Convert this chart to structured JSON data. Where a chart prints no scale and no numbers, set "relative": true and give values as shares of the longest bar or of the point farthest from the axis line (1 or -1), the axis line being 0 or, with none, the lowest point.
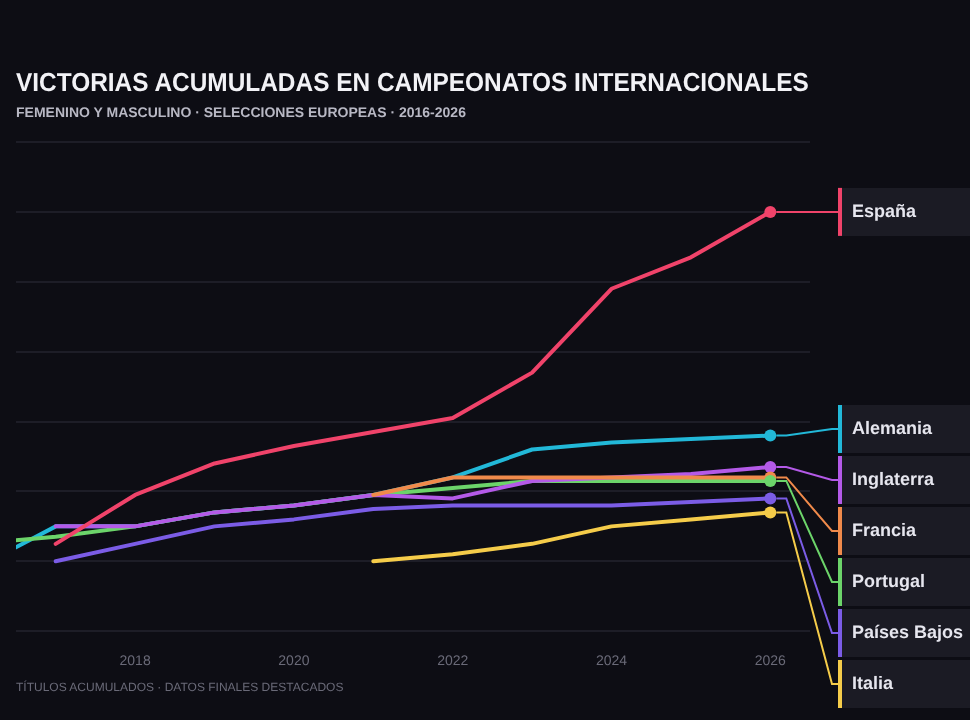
{
  "chart_data": {
    "type": "line",
    "title": "VICTORIAS ACUMULADAS EN CAMPEONATOS INTERNACIONALES",
    "subtitle": "FEMENINO Y MASCULINO · SELECCIONES EUROPEAS · 2016-2026",
    "annotations": [
      "TÍTULOS ACUMULADOS · DATOS FINALES DESTACADOS"
    ],
    "relative": true,
    "xlim": [
      2016.5,
      2026.5
    ],
    "xticks": [
      2018,
      2020,
      2022,
      2024,
      2026
    ],
    "grid": "y",
    "legend": "right",
    "line_style": "solid",
    "series": [
      {
        "name": "Alemania",
        "color": "#22b8d8",
        "x": [
          2016.5,
          2017,
          2018,
          2019,
          2020,
          2021,
          2022,
          2023,
          2024,
          2025,
          2026
        ],
        "values": [
          0.04,
          0.1,
          0.1,
          0.14,
          0.16,
          0.19,
          0.24,
          0.32,
          0.34,
          0.35,
          0.36
        ]
      },
      {
        "name": "Portugal",
        "color": "#6cd46a",
        "x": [
          2016.5,
          2017,
          2018,
          2019,
          2020,
          2021,
          2022,
          2023,
          2024,
          2025,
          2026
        ],
        "values": [
          0.06,
          0.07,
          0.1,
          0.14,
          0.16,
          0.19,
          0.21,
          0.23,
          0.23,
          0.23,
          0.23
        ]
      },
      {
        "name": "Inglaterra",
        "color": "#b45ae8",
        "x": [
          2017,
          2018,
          2019,
          2020,
          2021,
          2022,
          2023,
          2024,
          2025,
          2026
        ],
        "values": [
          0.1,
          0.1,
          0.14,
          0.16,
          0.19,
          0.18,
          0.23,
          0.24,
          0.25,
          0.27
        ]
      },
      {
        "name": "Francia",
        "color": "#f08a4b",
        "x": [
          2021,
          2022,
          2023,
          2024,
          2025,
          2026
        ],
        "values": [
          0.19,
          0.24,
          0.24,
          0.24,
          0.24,
          0.24
        ]
      },
      {
        "name": "Países Bajos",
        "color": "#7b5ce6",
        "x": [
          2017,
          2018,
          2019,
          2020,
          2021,
          2022,
          2023,
          2024,
          2025,
          2026
        ],
        "values": [
          0,
          0.05,
          0.1,
          0.12,
          0.15,
          0.16,
          0.16,
          0.16,
          0.17,
          0.18
        ]
      },
      {
        "name": "Italia",
        "color": "#f5cc4a",
        "x": [
          2021,
          2022,
          2023,
          2024,
          2025,
          2026
        ],
        "values": [
          0,
          0.02,
          0.05,
          0.1,
          0.12,
          0.14
        ]
      },
      {
        "name": "España",
        "color": "#f0436a",
        "x": [
          2017,
          2018,
          2019,
          2020,
          2021,
          2022,
          2023,
          2024,
          2025,
          2026
        ],
        "values": [
          0.05,
          0.19,
          0.28,
          0.33,
          0.37,
          0.41,
          0.54,
          0.78,
          0.87,
          1
        ]
      }
    ]
  }
}
